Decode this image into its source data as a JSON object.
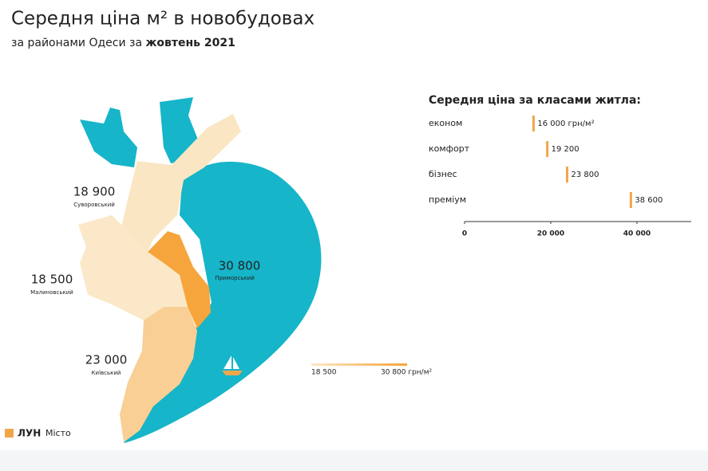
{
  "header": {
    "title": "Середня ціна м² в новобудовах",
    "subtitle": "за районами Одеси за ",
    "subtitle_bold": "жовтень 2021"
  },
  "map": {
    "color_min": "#fbe8c8",
    "color_max": "#f6a53c",
    "districts": [
      {
        "name": "Суворовський",
        "value": 18900,
        "value_label": "18 900"
      },
      {
        "name": "Малиновський",
        "value": 18500,
        "value_label": "18 500"
      },
      {
        "name": "Київський",
        "value": 23000,
        "value_label": "23 000"
      },
      {
        "name": "Приморський",
        "value": 30800,
        "value_label": "30 800"
      }
    ],
    "legend": {
      "min": {
        "value": 18500,
        "label": "18 500"
      },
      "max": {
        "value": 30800,
        "label": "30 800 грн/м²"
      }
    }
  },
  "chart_data": {
    "type": "bar",
    "orientation": "horizontal",
    "title": "Середня ціна за класами житла:",
    "categories": [
      "економ",
      "комфорт",
      "бізнес",
      "преміум"
    ],
    "values": [
      16000,
      19200,
      23800,
      38600
    ],
    "value_labels": [
      "16 000 грн/м²",
      "19 200",
      "23 800",
      "38 600"
    ],
    "color": "#f2a64a",
    "xlim": [
      0,
      52600
    ],
    "xticks": [
      0,
      {
        "value": 20000,
        "label": "20 000"
      },
      {
        "value": 40000,
        "label": "40 000"
      }
    ]
  },
  "logo": {
    "brand": "ЛУН",
    "product": "Місто"
  }
}
